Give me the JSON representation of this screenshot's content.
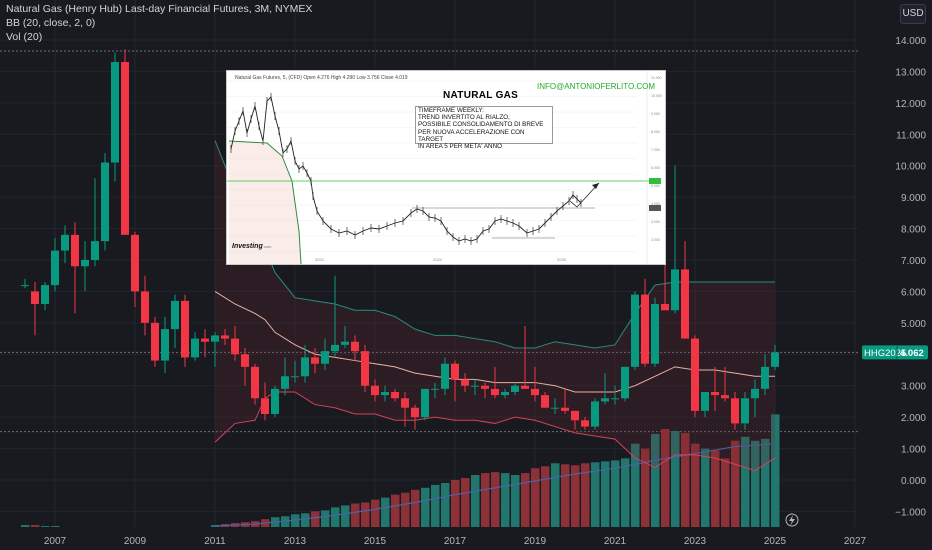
{
  "header": {
    "line1": "Natural Gas (Henry Hub) Last-day Financial Futures, 3M, NYMEX",
    "line2": "BB (20, close, 2, 0)",
    "line3": "Vol (20)"
  },
  "currency_label": "USD",
  "price_label": {
    "symbol": "HHG2025",
    "value": "4.062"
  },
  "inset": {
    "header": "Natural Gas Futures, 5, (CFD)    Open 4.276  High 4.290  Low 3.756  Close 4.019",
    "title": "NATURAL GAS",
    "email": "INFO@ANTONIOFERLITO.COM",
    "note": "TIMEFRAME WEEKLY:\nTREND INVERTITO AL RIALZO,\nPOSSIBILE CONSOLIDAMENTO DI BREVE\nPER NUOVA ACCELERAZIONE CON TARGET\nIN AREA 5 PER META' ANNO",
    "logo": "Investing",
    "logo_suffix": ".com",
    "x_labels": [
      "2022",
      "2024",
      "2025"
    ]
  },
  "chart_data": {
    "type": "candlestick",
    "title": "Natural Gas (Henry Hub) Last-day Financial Futures, 3M, NYMEX",
    "x_ticks": [
      "2007",
      "2009",
      "2011",
      "2013",
      "2015",
      "2017",
      "2019",
      "2021",
      "2023",
      "2025",
      "2027"
    ],
    "y_ticks": [
      "14.000",
      "13.000",
      "12.000",
      "11.000",
      "10.000",
      "9.000",
      "8.000",
      "7.000",
      "6.000",
      "5.000",
      "4.000",
      "3.000",
      "2.000",
      "1.000",
      "0.000",
      "−1.000"
    ],
    "ylim": [
      -1.4,
      14.6
    ],
    "horizontal_lines": [
      13.65,
      4.062,
      1.54
    ],
    "last_price": 4.062,
    "candles": [
      {
        "t": 2006.25,
        "o": 6.2,
        "h": 6.4,
        "l": 6.1,
        "c": 6.2
      },
      {
        "t": 2006.5,
        "o": 6.0,
        "h": 6.3,
        "l": 4.6,
        "c": 5.6
      },
      {
        "t": 2006.75,
        "o": 5.6,
        "h": 6.3,
        "l": 5.4,
        "c": 6.2
      },
      {
        "t": 2007.0,
        "o": 6.2,
        "h": 7.7,
        "l": 6.0,
        "c": 7.3
      },
      {
        "t": 2007.25,
        "o": 7.3,
        "h": 8.1,
        "l": 6.9,
        "c": 7.8
      },
      {
        "t": 2007.5,
        "o": 7.8,
        "h": 8.2,
        "l": 5.3,
        "c": 6.8
      },
      {
        "t": 2007.75,
        "o": 6.8,
        "h": 7.6,
        "l": 6.0,
        "c": 7.0
      },
      {
        "t": 2008.0,
        "o": 7.0,
        "h": 9.6,
        "l": 6.8,
        "c": 7.6
      },
      {
        "t": 2008.25,
        "o": 7.6,
        "h": 10.4,
        "l": 7.3,
        "c": 10.1
      },
      {
        "t": 2008.5,
        "o": 10.1,
        "h": 13.6,
        "l": 9.5,
        "c": 13.3
      },
      {
        "t": 2008.75,
        "o": 13.3,
        "h": 13.7,
        "l": 7.8,
        "c": 7.8
      },
      {
        "t": 2009.0,
        "o": 7.8,
        "h": 7.9,
        "l": 5.5,
        "c": 6.0
      },
      {
        "t": 2009.25,
        "o": 6.0,
        "h": 6.5,
        "l": 4.6,
        "c": 5.0
      },
      {
        "t": 2009.5,
        "o": 5.0,
        "h": 5.2,
        "l": 3.6,
        "c": 3.8
      },
      {
        "t": 2009.75,
        "o": 3.8,
        "h": 5.2,
        "l": 3.4,
        "c": 4.8
      },
      {
        "t": 2010.0,
        "o": 4.8,
        "h": 5.9,
        "l": 4.2,
        "c": 5.7
      },
      {
        "t": 2010.25,
        "o": 5.7,
        "h": 5.9,
        "l": 3.6,
        "c": 3.9
      },
      {
        "t": 2010.5,
        "o": 3.9,
        "h": 4.7,
        "l": 3.8,
        "c": 4.5
      },
      {
        "t": 2010.75,
        "o": 4.5,
        "h": 4.8,
        "l": 3.9,
        "c": 4.4
      },
      {
        "t": 2011.0,
        "o": 4.4,
        "h": 4.7,
        "l": 3.6,
        "c": 4.6
      },
      {
        "t": 2011.25,
        "o": 4.6,
        "h": 4.8,
        "l": 4.3,
        "c": 4.5
      },
      {
        "t": 2011.5,
        "o": 4.5,
        "h": 4.9,
        "l": 3.8,
        "c": 4.0
      },
      {
        "t": 2011.75,
        "o": 4.0,
        "h": 4.2,
        "l": 3.0,
        "c": 3.6
      },
      {
        "t": 2012.0,
        "o": 3.6,
        "h": 3.7,
        "l": 2.4,
        "c": 2.6
      },
      {
        "t": 2012.25,
        "o": 2.6,
        "h": 3.1,
        "l": 1.9,
        "c": 2.1
      },
      {
        "t": 2012.5,
        "o": 2.1,
        "h": 3.0,
        "l": 2.0,
        "c": 2.9
      },
      {
        "t": 2012.75,
        "o": 2.9,
        "h": 3.9,
        "l": 2.7,
        "c": 3.3
      },
      {
        "t": 2013.0,
        "o": 3.3,
        "h": 3.8,
        "l": 3.1,
        "c": 3.3
      },
      {
        "t": 2013.25,
        "o": 3.3,
        "h": 4.3,
        "l": 3.1,
        "c": 3.9
      },
      {
        "t": 2013.5,
        "o": 3.9,
        "h": 4.2,
        "l": 3.4,
        "c": 3.7
      },
      {
        "t": 2013.75,
        "o": 3.7,
        "h": 4.5,
        "l": 3.5,
        "c": 4.1
      },
      {
        "t": 2014.0,
        "o": 4.1,
        "h": 6.5,
        "l": 3.9,
        "c": 4.3
      },
      {
        "t": 2014.25,
        "o": 4.3,
        "h": 4.9,
        "l": 4.2,
        "c": 4.4
      },
      {
        "t": 2014.5,
        "o": 4.4,
        "h": 4.6,
        "l": 3.8,
        "c": 4.1
      },
      {
        "t": 2014.75,
        "o": 4.1,
        "h": 4.3,
        "l": 2.8,
        "c": 3.0
      },
      {
        "t": 2015.0,
        "o": 3.0,
        "h": 3.2,
        "l": 2.5,
        "c": 2.7
      },
      {
        "t": 2015.25,
        "o": 2.7,
        "h": 3.0,
        "l": 2.5,
        "c": 2.8
      },
      {
        "t": 2015.5,
        "o": 2.8,
        "h": 2.9,
        "l": 2.5,
        "c": 2.6
      },
      {
        "t": 2015.75,
        "o": 2.6,
        "h": 2.8,
        "l": 1.7,
        "c": 2.3
      },
      {
        "t": 2016.0,
        "o": 2.3,
        "h": 2.4,
        "l": 1.6,
        "c": 2.0
      },
      {
        "t": 2016.25,
        "o": 2.0,
        "h": 2.9,
        "l": 1.9,
        "c": 2.9
      },
      {
        "t": 2016.5,
        "o": 2.9,
        "h": 3.1,
        "l": 2.6,
        "c": 2.9
      },
      {
        "t": 2016.75,
        "o": 2.9,
        "h": 3.9,
        "l": 2.7,
        "c": 3.7
      },
      {
        "t": 2017.0,
        "o": 3.7,
        "h": 3.8,
        "l": 2.5,
        "c": 3.2
      },
      {
        "t": 2017.25,
        "o": 3.2,
        "h": 3.4,
        "l": 2.8,
        "c": 3.0
      },
      {
        "t": 2017.5,
        "o": 3.0,
        "h": 3.2,
        "l": 2.7,
        "c": 3.0
      },
      {
        "t": 2017.75,
        "o": 3.0,
        "h": 3.1,
        "l": 2.6,
        "c": 2.9
      },
      {
        "t": 2018.0,
        "o": 2.9,
        "h": 3.6,
        "l": 2.6,
        "c": 2.7
      },
      {
        "t": 2018.25,
        "o": 2.7,
        "h": 2.9,
        "l": 2.6,
        "c": 2.8
      },
      {
        "t": 2018.5,
        "o": 2.8,
        "h": 3.1,
        "l": 2.7,
        "c": 3.0
      },
      {
        "t": 2018.75,
        "o": 3.0,
        "h": 4.9,
        "l": 2.9,
        "c": 2.9
      },
      {
        "t": 2019.0,
        "o": 2.9,
        "h": 3.6,
        "l": 2.5,
        "c": 2.7
      },
      {
        "t": 2019.25,
        "o": 2.7,
        "h": 2.8,
        "l": 2.3,
        "c": 2.3
      },
      {
        "t": 2019.5,
        "o": 2.3,
        "h": 2.6,
        "l": 2.1,
        "c": 2.3
      },
      {
        "t": 2019.75,
        "o": 2.3,
        "h": 2.9,
        "l": 2.1,
        "c": 2.2
      },
      {
        "t": 2020.0,
        "o": 2.2,
        "h": 2.2,
        "l": 1.6,
        "c": 1.9
      },
      {
        "t": 2020.25,
        "o": 1.9,
        "h": 2.0,
        "l": 1.6,
        "c": 1.7
      },
      {
        "t": 2020.5,
        "o": 1.7,
        "h": 2.6,
        "l": 1.6,
        "c": 2.5
      },
      {
        "t": 2020.75,
        "o": 2.5,
        "h": 3.4,
        "l": 2.4,
        "c": 2.6
      },
      {
        "t": 2021.0,
        "o": 2.6,
        "h": 3.0,
        "l": 2.4,
        "c": 2.6
      },
      {
        "t": 2021.25,
        "o": 2.6,
        "h": 3.6,
        "l": 2.5,
        "c": 3.6
      },
      {
        "t": 2021.5,
        "o": 3.6,
        "h": 6.0,
        "l": 3.5,
        "c": 5.9
      },
      {
        "t": 2021.75,
        "o": 5.9,
        "h": 6.4,
        "l": 3.6,
        "c": 3.7
      },
      {
        "t": 2022.0,
        "o": 3.7,
        "h": 5.8,
        "l": 3.6,
        "c": 5.6
      },
      {
        "t": 2022.25,
        "o": 5.6,
        "h": 9.6,
        "l": 5.5,
        "c": 5.4
      },
      {
        "t": 2022.5,
        "o": 5.4,
        "h": 10.0,
        "l": 5.3,
        "c": 6.7
      },
      {
        "t": 2022.75,
        "o": 6.7,
        "h": 7.6,
        "l": 4.5,
        "c": 4.5
      },
      {
        "t": 2023.0,
        "o": 4.5,
        "h": 4.6,
        "l": 2.0,
        "c": 2.2
      },
      {
        "t": 2023.25,
        "o": 2.2,
        "h": 2.8,
        "l": 2.0,
        "c": 2.8
      },
      {
        "t": 2023.5,
        "o": 2.8,
        "h": 3.6,
        "l": 2.2,
        "c": 2.7
      },
      {
        "t": 2023.75,
        "o": 2.7,
        "h": 3.6,
        "l": 2.5,
        "c": 2.6
      },
      {
        "t": 2024.0,
        "o": 2.6,
        "h": 2.8,
        "l": 1.6,
        "c": 1.8
      },
      {
        "t": 2024.25,
        "o": 1.8,
        "h": 2.8,
        "l": 1.6,
        "c": 2.6
      },
      {
        "t": 2024.5,
        "o": 2.6,
        "h": 3.2,
        "l": 2.0,
        "c": 2.9
      },
      {
        "t": 2024.75,
        "o": 2.9,
        "h": 4.0,
        "l": 2.7,
        "c": 3.6
      },
      {
        "t": 2025.0,
        "o": 3.6,
        "h": 4.3,
        "l": 3.5,
        "c": 4.06
      }
    ],
    "volume": {
      "ylim_note": "volume pane shares the bottom area; values are relative bar heights in thousands of contracts",
      "t": [
        2006.25,
        2006.5,
        2006.75,
        2007.0,
        2011.0,
        2011.25,
        2011.5,
        2011.75,
        2012.0,
        2012.25,
        2012.5,
        2012.75,
        2013.0,
        2013.25,
        2013.5,
        2013.75,
        2014.0,
        2014.25,
        2014.5,
        2014.75,
        2015.0,
        2015.25,
        2015.5,
        2015.75,
        2016.0,
        2016.25,
        2016.5,
        2016.75,
        2017.0,
        2017.25,
        2017.5,
        2017.75,
        2018.0,
        2018.25,
        2018.5,
        2018.75,
        2019.0,
        2019.25,
        2019.5,
        2019.75,
        2020.0,
        2020.25,
        2020.5,
        2020.75,
        2021.0,
        2021.25,
        2021.5,
        2021.75,
        2022.0,
        2022.25,
        2022.5,
        2022.75,
        2023.0,
        2023.25,
        2023.5,
        2023.75,
        2024.0,
        2024.25,
        2024.5,
        2024.75,
        2025.0
      ],
      "v": [
        2,
        2,
        1,
        1,
        2,
        3,
        4,
        5,
        6,
        8,
        10,
        11,
        13,
        14,
        16,
        17,
        20,
        22,
        24,
        25,
        28,
        30,
        33,
        35,
        38,
        40,
        43,
        45,
        48,
        50,
        53,
        55,
        56,
        55,
        53,
        55,
        60,
        62,
        65,
        64,
        63,
        65,
        66,
        67,
        68,
        70,
        85,
        80,
        95,
        100,
        98,
        96,
        85,
        80,
        78,
        70,
        88,
        92,
        88,
        90,
        115
      ]
    },
    "bollinger": {
      "t": [
        2011.0,
        2011.5,
        2012.0,
        2012.25,
        2012.5,
        2013.0,
        2013.5,
        2014.0,
        2014.5,
        2015.0,
        2015.5,
        2016.0,
        2016.5,
        2017.0,
        2017.5,
        2018.0,
        2018.5,
        2019.0,
        2019.5,
        2020.0,
        2020.5,
        2021.0,
        2021.5,
        2022.0,
        2022.5,
        2023.0,
        2023.5,
        2024.0,
        2024.5,
        2025.0
      ],
      "upper": [
        10.8,
        9.2,
        8.1,
        7.4,
        6.6,
        5.8,
        5.7,
        5.6,
        5.4,
        5.4,
        5.2,
        4.8,
        4.6,
        4.6,
        4.5,
        4.4,
        4.2,
        4.2,
        4.4,
        4.3,
        4.2,
        4.3,
        5.3,
        6.2,
        6.3,
        6.3,
        6.3,
        6.3,
        6.3,
        6.3
      ],
      "middle": [
        6.0,
        5.6,
        5.3,
        5.1,
        4.7,
        4.3,
        4.0,
        3.9,
        3.8,
        3.7,
        3.6,
        3.4,
        3.3,
        3.2,
        3.2,
        3.1,
        3.1,
        3.1,
        3.0,
        2.8,
        2.8,
        2.8,
        3.0,
        3.3,
        3.6,
        3.5,
        3.5,
        3.4,
        3.3,
        3.3
      ],
      "lower": [
        1.2,
        1.8,
        1.9,
        2.6,
        2.8,
        2.8,
        2.4,
        2.3,
        2.1,
        2.1,
        1.9,
        1.9,
        2.0,
        1.9,
        1.9,
        1.8,
        2.0,
        1.9,
        1.7,
        1.5,
        1.4,
        1.3,
        0.7,
        0.4,
        0.8,
        0.8,
        0.7,
        0.5,
        0.3,
        0.7
      ]
    },
    "volume_ma": {
      "t": [
        2011.0,
        2012.0,
        2013.0,
        2014.0,
        2015.0,
        2016.0,
        2017.0,
        2018.0,
        2019.0,
        2020.0,
        2021.0,
        2022.0,
        2023.0,
        2024.0,
        2025.0
      ],
      "v": [
        1,
        3,
        7,
        12,
        18,
        25,
        33,
        40,
        47,
        54,
        60,
        68,
        75,
        82,
        85
      ]
    }
  },
  "colors": {
    "background": "#181a20",
    "up": "#089981",
    "down": "#f23645",
    "bb_upper": "#2a8c7a",
    "bb_lower": "#d9405a",
    "bb_middle": "#e8b3a3",
    "vol_up": "#21776d",
    "vol_down": "#8d3138"
  }
}
